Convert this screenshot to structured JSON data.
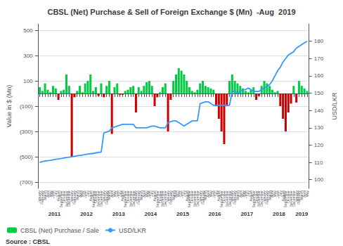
{
  "chart_data": {
    "type": "bar",
    "title": "CBSL (Net) Purchase & Sell of Foreign Exchange $ (Mn)  -Aug  2019",
    "ylabel": "Value in $ (Mn)",
    "y2label": "USD/LKR",
    "categories": [
      "January",
      "February",
      "March",
      "April",
      "May",
      "June",
      "July",
      "August",
      "September",
      "October",
      "November",
      "December",
      "January",
      "February",
      "March",
      "April",
      "May",
      "June",
      "July",
      "August",
      "September",
      "October",
      "November",
      "December",
      "January",
      "February",
      "March",
      "April",
      "May",
      "June",
      "July",
      "August",
      "September",
      "October",
      "November",
      "December",
      "January",
      "February",
      "March",
      "April",
      "May",
      "June",
      "July",
      "August",
      "September",
      "October",
      "November",
      "December",
      "January",
      "February",
      "March",
      "April",
      "May",
      "June",
      "July",
      "August",
      "September",
      "October",
      "November",
      "December",
      "January",
      "February",
      "March",
      "April",
      "May",
      "June",
      "July",
      "August",
      "September",
      "October",
      "November",
      "December",
      "January",
      "February",
      "March",
      "April",
      "May",
      "June",
      "July",
      "August",
      "September",
      "October",
      "November",
      "December",
      "January",
      "February",
      "March",
      "April",
      "May",
      "June",
      "July",
      "August",
      "September",
      "October",
      "November",
      "December",
      "January",
      "February",
      "March",
      "April",
      "May"
    ],
    "series": [
      {
        "name": "CBSL (Net) Purchase / Sale",
        "type": "bar",
        "color": "#00cc44",
        "values": [
          50,
          20,
          80,
          30,
          10,
          60,
          40,
          -50,
          20,
          30,
          150,
          60,
          -500,
          -30,
          20,
          60,
          10,
          80,
          100,
          150,
          20,
          50,
          -20,
          80,
          -30,
          60,
          100,
          -320,
          50,
          80,
          -10,
          -10,
          20,
          30,
          50,
          60,
          -150,
          50,
          20,
          60,
          90,
          100,
          60,
          -100,
          -30,
          10,
          50,
          80,
          -300,
          -50,
          100,
          150,
          200,
          180,
          150,
          100,
          50,
          20,
          10,
          30,
          80,
          100,
          60,
          50,
          40,
          30,
          -100,
          -200,
          -300,
          -400,
          -100,
          100,
          150,
          100,
          80,
          60,
          40,
          20,
          10,
          30,
          50,
          -50,
          -20,
          60,
          100,
          80,
          60,
          30,
          10,
          20,
          -100,
          -200,
          -300,
          -150,
          -80,
          60,
          -71.4,
          100,
          60,
          40,
          20
        ],
        "colors": [
          "#00cc44",
          "#00cc44",
          "#00cc44",
          "#00cc44",
          "#00cc44",
          "#00cc44",
          "#00cc44",
          "#cc0000",
          "#00cc44",
          "#00cc44",
          "#00cc44",
          "#00cc44",
          "#cc0000",
          "#cc0000",
          "#00cc44",
          "#00cc44",
          "#00cc44",
          "#00cc44",
          "#00cc44",
          "#00cc44",
          "#00cc44",
          "#00cc44",
          "#cc0000",
          "#00cc44",
          "#cc0000",
          "#00cc44",
          "#00cc44",
          "#cc0000",
          "#00cc44",
          "#00cc44",
          "#cc0000",
          "#cc0000",
          "#00cc44",
          "#00cc44",
          "#00cc44",
          "#00cc44",
          "#cc0000",
          "#00cc44",
          "#00cc44",
          "#00cc44",
          "#00cc44",
          "#00cc44",
          "#00cc44",
          "#cc0000",
          "#cc0000",
          "#00cc44",
          "#00cc44",
          "#00cc44",
          "#cc0000",
          "#cc0000",
          "#00cc44",
          "#00cc44",
          "#00cc44",
          "#00cc44",
          "#00cc44",
          "#00cc44",
          "#00cc44",
          "#00cc44",
          "#00cc44",
          "#00cc44",
          "#00cc44",
          "#00cc44",
          "#00cc44",
          "#00cc44",
          "#00cc44",
          "#00cc44",
          "#cc0000",
          "#cc0000",
          "#cc0000",
          "#cc0000",
          "#cc0000",
          "#00cc44",
          "#00cc44",
          "#00cc44",
          "#00cc44",
          "#00cc44",
          "#00cc44",
          "#00cc44",
          "#00cc44",
          "#00cc44",
          "#00cc44",
          "#cc0000",
          "#cc0000",
          "#00cc44",
          "#00cc44",
          "#00cc44",
          "#00cc44",
          "#00cc44",
          "#00cc44",
          "#00cc44",
          "#cc0000",
          "#cc0000",
          "#cc0000",
          "#cc0000",
          "#cc0000",
          "#00cc44",
          "#cc0000",
          "#00cc44",
          "#00cc44",
          "#00cc44",
          "#00cc44"
        ]
      },
      {
        "name": "USD/LKR",
        "type": "line",
        "axis": "y2",
        "color": "#3399ff",
        "values": [
          110,
          110.5,
          110.8,
          111,
          111.2,
          111.5,
          111.8,
          112,
          112.2,
          112.5,
          112.8,
          113,
          113.2,
          113.5,
          113.8,
          114,
          114.2,
          114.5,
          114.8,
          115,
          115.2,
          115.5,
          115.8,
          116,
          127,
          127.5,
          128,
          130,
          130.5,
          131,
          131.5,
          132,
          132,
          132,
          132,
          132,
          130,
          130,
          130,
          130,
          130,
          130.5,
          131,
          131,
          130.5,
          130,
          130,
          130,
          133,
          133.5,
          134,
          134,
          133,
          132,
          131,
          132,
          133,
          134,
          134,
          134,
          144,
          144.5,
          145,
          145,
          144,
          143,
          143,
          143,
          143,
          143,
          143,
          143,
          151,
          151,
          150,
          151,
          152,
          152,
          153,
          152,
          151,
          151,
          151,
          152,
          153,
          154,
          155,
          157,
          160,
          163,
          165,
          168,
          170,
          172,
          173,
          174,
          176,
          177,
          178,
          179,
          180
        ]
      }
    ],
    "ylim": [
      -750,
      550
    ],
    "yticks": [
      500,
      300,
      100,
      {
        "value": -100,
        "label": "(100)"
      },
      {
        "value": -300,
        "label": "(300)"
      },
      {
        "value": -500,
        "label": "(500)"
      },
      {
        "value": -700,
        "label": "(700)"
      }
    ],
    "y2lim": [
      95,
      190
    ],
    "y2ticks": [
      100,
      110,
      120,
      130,
      140,
      150,
      160,
      170,
      180
    ],
    "annotations": [
      "2011",
      "2012",
      "2013",
      "2014",
      "2015",
      "2016",
      "2017",
      "2018",
      "2019"
    ],
    "source": "Source : CBSL",
    "grid": true,
    "legend": "lower left"
  }
}
